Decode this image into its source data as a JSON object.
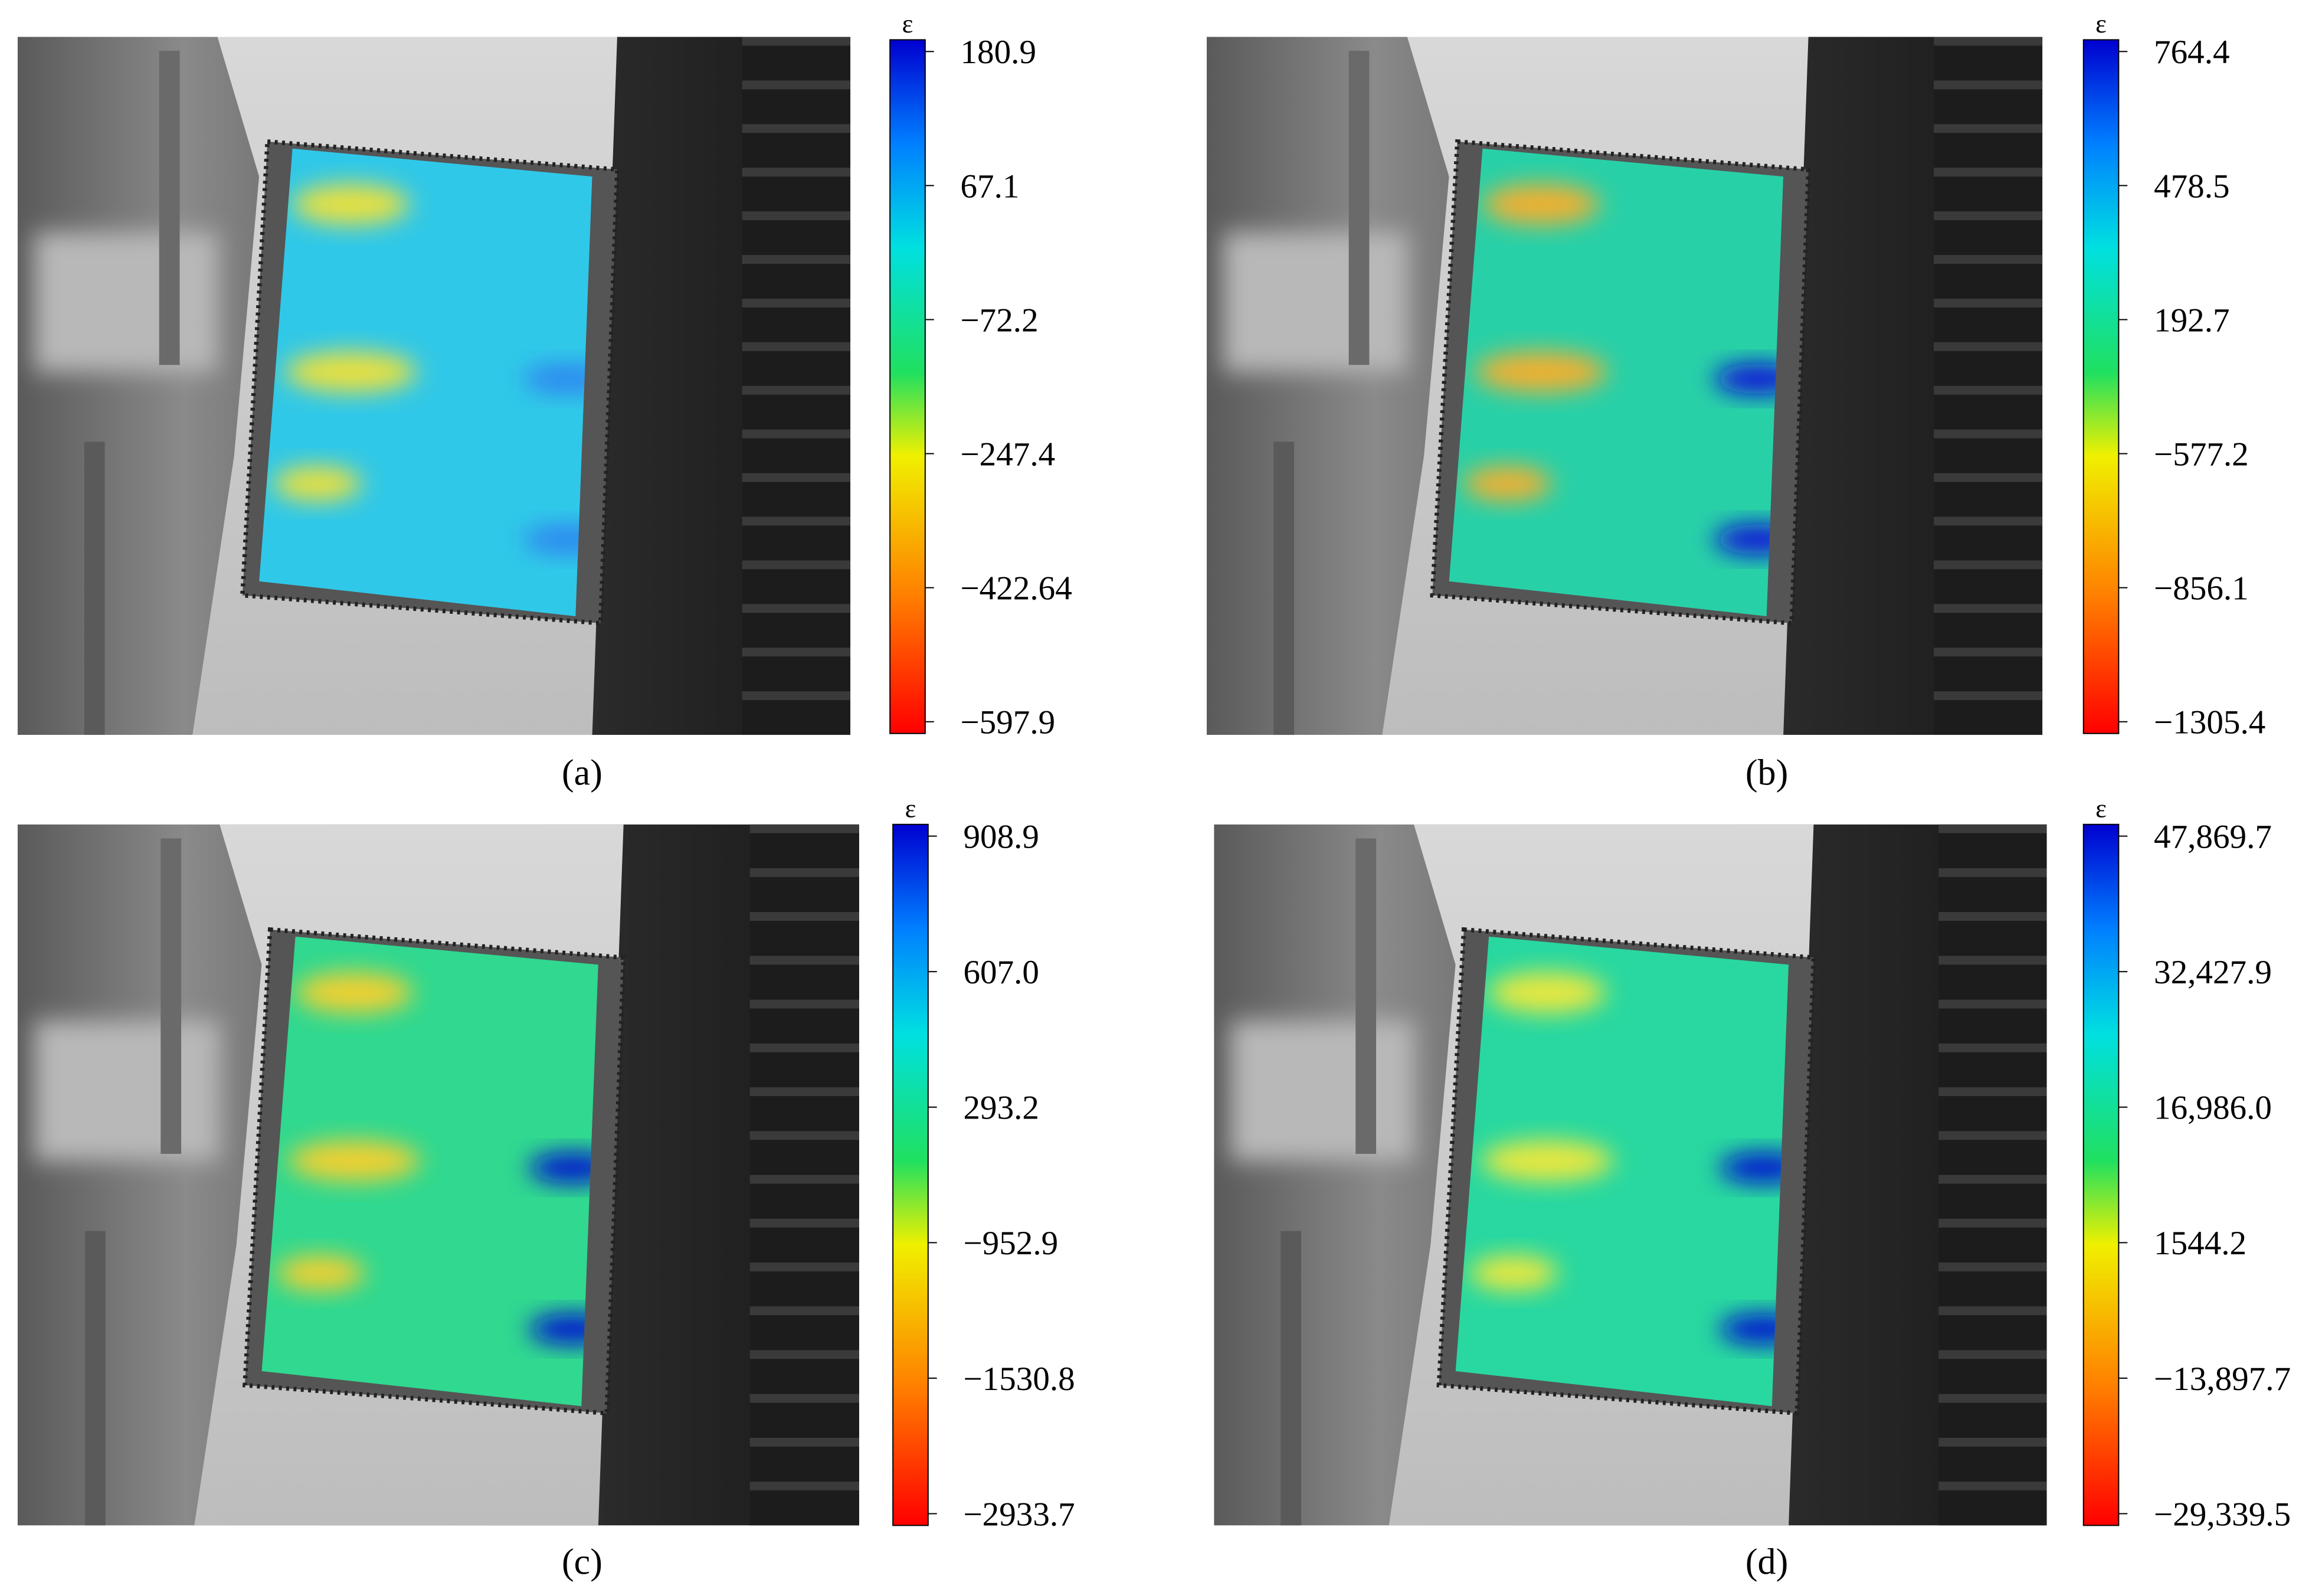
{
  "panels": [
    {
      "label": "(a)",
      "colorbar": {
        "symbol": "ε",
        "ticks": [
          "180.9",
          "67.1",
          "−72.2",
          "−247.4",
          "−422.64",
          "−597.9"
        ]
      }
    },
    {
      "label": "(b)",
      "colorbar": {
        "symbol": "ε",
        "ticks": [
          "764.4",
          "478.5",
          "192.7",
          "−577.2",
          "−856.1",
          "−1305.4"
        ]
      }
    },
    {
      "label": "(c)",
      "colorbar": {
        "symbol": "ε",
        "ticks": [
          "908.9",
          "607.0",
          "293.2",
          "−952.9",
          "−1530.8",
          "−2933.7"
        ]
      }
    },
    {
      "label": "(d)",
      "colorbar": {
        "symbol": "ε",
        "ticks": [
          "47,869.7",
          "32,427.9",
          "16,986.0",
          "1544.2",
          "−13,897.7",
          "−29,339.5"
        ]
      }
    }
  ]
}
